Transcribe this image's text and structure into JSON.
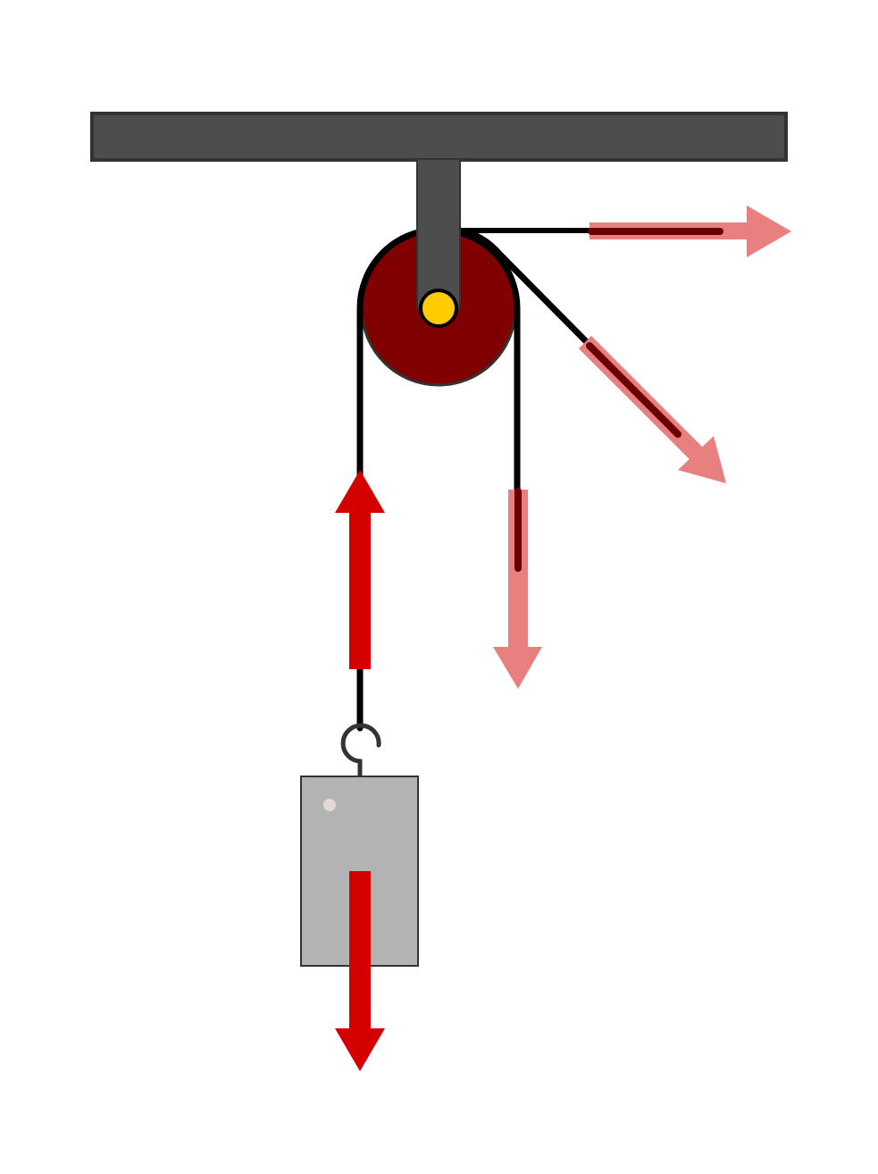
{
  "colors": {
    "background": "#ffffff",
    "ceiling": "#4d4d4d",
    "outline": "#333333",
    "pulley_wheel": "#800000",
    "axle": "#ffcc00",
    "rope": "#000000",
    "weight": "#b3b3b3",
    "force_primary": "#d40000",
    "force_faded": "#e98080",
    "force_overlap": "#6b0000"
  },
  "parts": {
    "ceiling": "ceiling-beam",
    "bracket": "pulley-bracket",
    "wheel": "pulley-wheel",
    "axle": "axle-pin",
    "hook": "hook-icon",
    "weight": "hanging-weight"
  },
  "forces": {
    "tension_up": {
      "direction": "up",
      "style": "solid"
    },
    "weight_down": {
      "direction": "down",
      "style": "solid"
    },
    "pull_down": {
      "direction": "down",
      "style": "faded"
    },
    "pull_diagonal": {
      "direction": "down-right",
      "style": "faded"
    },
    "pull_horizontal": {
      "direction": "right",
      "style": "faded"
    }
  }
}
